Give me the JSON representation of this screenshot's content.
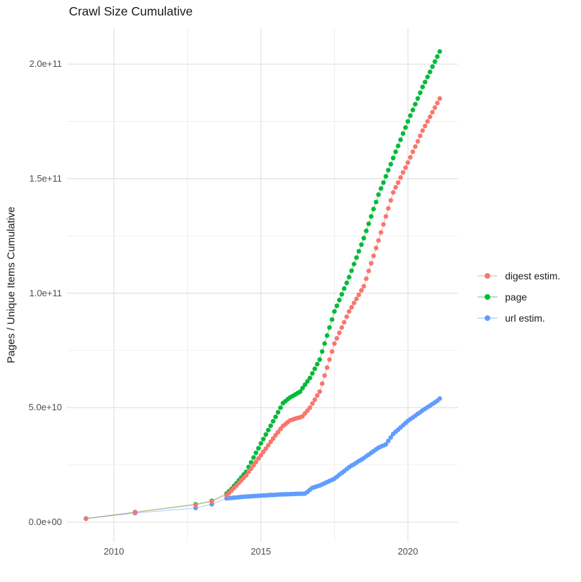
{
  "title": "Crawl Size Cumulative",
  "y_axis_title": "Pages / Unique Items Cumulative",
  "legend": {
    "items": [
      {
        "label": "digest estim.",
        "color": "#F8766D"
      },
      {
        "label": "page",
        "color": "#00BA38"
      },
      {
        "label": "url estim.",
        "color": "#619CFF"
      }
    ]
  },
  "colors": {
    "digest": "#F8766D",
    "page": "#00BA38",
    "url": "#619CFF",
    "grid_major": "#E3E3E3",
    "grid_minor": "#EDEDED",
    "tick_text": "#4d4d4d",
    "title_text": "#1a1a1a",
    "background": "#ffffff"
  },
  "chart_data": {
    "type": "scatter",
    "title": "Crawl Size Cumulative",
    "xlabel": "",
    "ylabel": "Pages / Unique Items Cumulative",
    "grid": true,
    "legend_position": "right-center",
    "x_unit": "year",
    "y_unit_note": "point values stored in billions (1e9) of pages / unique items",
    "xlim": [
      2008.4,
      2021.7
    ],
    "ylim_billions": [
      -8.6,
      215.7
    ],
    "x_ticks": {
      "major": [
        {
          "value": 2010,
          "label": "2010"
        },
        {
          "value": 2015,
          "label": "2015"
        },
        {
          "value": 2020,
          "label": "2020"
        }
      ],
      "minor": [
        2012.5,
        2017.5
      ]
    },
    "y_ticks": {
      "major": [
        {
          "value": 0,
          "label": "0.0e+00"
        },
        {
          "value": 50,
          "label": "5.0e+10"
        },
        {
          "value": 100,
          "label": "1.0e+11"
        },
        {
          "value": 150,
          "label": "1.5e+11"
        },
        {
          "value": 200,
          "label": "2.0e+11"
        }
      ],
      "minor": [
        25,
        75,
        125,
        175
      ]
    },
    "series": [
      {
        "name": "digest estim.",
        "color": "#F8766D",
        "points": [
          [
            2009.05,
            1.55
          ],
          [
            2010.72,
            4.3
          ],
          [
            2012.78,
            7.6
          ],
          [
            2013.33,
            9.0
          ],
          [
            2013.833,
            11.8
          ],
          [
            2013.917,
            12.8
          ],
          [
            2014.0,
            13.8
          ],
          [
            2014.083,
            14.9
          ],
          [
            2014.167,
            16.0
          ],
          [
            2014.25,
            17.2
          ],
          [
            2014.333,
            18.3
          ],
          [
            2014.417,
            19.4
          ],
          [
            2014.5,
            20.5
          ],
          [
            2014.583,
            22.0
          ],
          [
            2014.667,
            23.4
          ],
          [
            2014.75,
            24.9
          ],
          [
            2014.833,
            26.3
          ],
          [
            2014.917,
            27.8
          ],
          [
            2015.0,
            29.2
          ],
          [
            2015.083,
            30.7
          ],
          [
            2015.167,
            32.1
          ],
          [
            2015.25,
            33.6
          ],
          [
            2015.333,
            35.1
          ],
          [
            2015.417,
            36.5
          ],
          [
            2015.5,
            38.0
          ],
          [
            2015.583,
            39.3
          ],
          [
            2015.667,
            40.7
          ],
          [
            2015.75,
            42.0
          ],
          [
            2015.833,
            42.8
          ],
          [
            2015.917,
            43.7
          ],
          [
            2016.0,
            44.5
          ],
          [
            2016.083,
            44.8
          ],
          [
            2016.167,
            45.2
          ],
          [
            2016.25,
            45.5
          ],
          [
            2016.333,
            45.8
          ],
          [
            2016.417,
            46.2
          ],
          [
            2016.5,
            47.5
          ],
          [
            2016.583,
            48.7
          ],
          [
            2016.667,
            50.0
          ],
          [
            2016.75,
            51.8
          ],
          [
            2016.833,
            53.5
          ],
          [
            2016.917,
            55.3
          ],
          [
            2017.0,
            57.0
          ],
          [
            2017.083,
            60.5
          ],
          [
            2017.167,
            64.0
          ],
          [
            2017.25,
            67.5
          ],
          [
            2017.333,
            71.0
          ],
          [
            2017.417,
            74.5
          ],
          [
            2017.5,
            78.0
          ],
          [
            2017.583,
            80.3
          ],
          [
            2017.667,
            82.7
          ],
          [
            2017.75,
            85.0
          ],
          [
            2017.833,
            87.3
          ],
          [
            2017.917,
            89.7
          ],
          [
            2018.0,
            92.0
          ],
          [
            2018.083,
            93.8
          ],
          [
            2018.167,
            95.7
          ],
          [
            2018.25,
            97.5
          ],
          [
            2018.333,
            99.3
          ],
          [
            2018.417,
            101.2
          ],
          [
            2018.5,
            103.0
          ],
          [
            2018.583,
            106.3
          ],
          [
            2018.667,
            109.7
          ],
          [
            2018.75,
            113.0
          ],
          [
            2018.833,
            116.3
          ],
          [
            2018.917,
            119.7
          ],
          [
            2019.0,
            123.0
          ],
          [
            2019.083,
            126.5
          ],
          [
            2019.167,
            130.0
          ],
          [
            2019.25,
            133.5
          ],
          [
            2019.333,
            137.0
          ],
          [
            2019.417,
            140.5
          ],
          [
            2019.5,
            144.0
          ],
          [
            2019.583,
            146.2
          ],
          [
            2019.667,
            148.3
          ],
          [
            2019.75,
            150.5
          ],
          [
            2019.833,
            152.7
          ],
          [
            2019.917,
            154.8
          ],
          [
            2020.0,
            157.0
          ],
          [
            2020.083,
            159.3
          ],
          [
            2020.167,
            161.7
          ],
          [
            2020.25,
            164.0
          ],
          [
            2020.333,
            166.3
          ],
          [
            2020.417,
            168.7
          ],
          [
            2020.5,
            171.0
          ],
          [
            2020.583,
            173.0
          ],
          [
            2020.667,
            175.0
          ],
          [
            2020.75,
            177.0
          ],
          [
            2020.833,
            179.0
          ],
          [
            2020.917,
            181.0
          ],
          [
            2021.0,
            183.0
          ],
          [
            2021.083,
            185.0
          ]
        ]
      },
      {
        "name": "page",
        "color": "#00BA38",
        "points": [
          [
            2009.05,
            1.6
          ],
          [
            2010.72,
            4.4
          ],
          [
            2012.78,
            7.8
          ],
          [
            2013.33,
            9.3
          ],
          [
            2013.833,
            12.5
          ],
          [
            2013.917,
            13.5
          ],
          [
            2014.0,
            14.5
          ],
          [
            2014.083,
            15.8
          ],
          [
            2014.167,
            17.0
          ],
          [
            2014.25,
            18.3
          ],
          [
            2014.333,
            19.5
          ],
          [
            2014.417,
            20.8
          ],
          [
            2014.5,
            22.0
          ],
          [
            2014.583,
            24.1
          ],
          [
            2014.667,
            26.1
          ],
          [
            2014.75,
            28.2
          ],
          [
            2014.833,
            30.3
          ],
          [
            2014.917,
            32.3
          ],
          [
            2015.0,
            34.4
          ],
          [
            2015.083,
            36.3
          ],
          [
            2015.167,
            38.3
          ],
          [
            2015.25,
            40.2
          ],
          [
            2015.333,
            42.1
          ],
          [
            2015.417,
            44.1
          ],
          [
            2015.5,
            46.0
          ],
          [
            2015.583,
            48.0
          ],
          [
            2015.667,
            50.0
          ],
          [
            2015.75,
            52.0
          ],
          [
            2015.833,
            52.8
          ],
          [
            2015.917,
            53.7
          ],
          [
            2016.0,
            54.5
          ],
          [
            2016.083,
            55.1
          ],
          [
            2016.167,
            55.7
          ],
          [
            2016.25,
            56.4
          ],
          [
            2016.333,
            57.0
          ],
          [
            2016.417,
            58.5
          ],
          [
            2016.5,
            60.0
          ],
          [
            2016.583,
            61.5
          ],
          [
            2016.667,
            63.0
          ],
          [
            2016.75,
            65.0
          ],
          [
            2016.833,
            67.0
          ],
          [
            2016.917,
            69.0
          ],
          [
            2017.0,
            71.0
          ],
          [
            2017.083,
            74.5
          ],
          [
            2017.167,
            78.0
          ],
          [
            2017.25,
            81.5
          ],
          [
            2017.333,
            85.0
          ],
          [
            2017.417,
            88.5
          ],
          [
            2017.5,
            92.0
          ],
          [
            2017.583,
            94.5
          ],
          [
            2017.667,
            97.0
          ],
          [
            2017.75,
            99.5
          ],
          [
            2017.833,
            102.0
          ],
          [
            2017.917,
            104.5
          ],
          [
            2018.0,
            107.0
          ],
          [
            2018.083,
            109.8
          ],
          [
            2018.167,
            112.7
          ],
          [
            2018.25,
            115.5
          ],
          [
            2018.333,
            118.3
          ],
          [
            2018.417,
            121.2
          ],
          [
            2018.5,
            124.0
          ],
          [
            2018.583,
            127.2
          ],
          [
            2018.667,
            130.3
          ],
          [
            2018.75,
            133.5
          ],
          [
            2018.833,
            136.7
          ],
          [
            2018.917,
            139.8
          ],
          [
            2019.0,
            143.0
          ],
          [
            2019.083,
            145.7
          ],
          [
            2019.167,
            148.3
          ],
          [
            2019.25,
            151.0
          ],
          [
            2019.333,
            153.7
          ],
          [
            2019.417,
            156.3
          ],
          [
            2019.5,
            159.0
          ],
          [
            2019.583,
            161.7
          ],
          [
            2019.667,
            164.3
          ],
          [
            2019.75,
            167.0
          ],
          [
            2019.833,
            169.7
          ],
          [
            2019.917,
            172.3
          ],
          [
            2020.0,
            175.0
          ],
          [
            2020.083,
            177.5
          ],
          [
            2020.167,
            180.0
          ],
          [
            2020.25,
            182.5
          ],
          [
            2020.333,
            185.0
          ],
          [
            2020.417,
            187.5
          ],
          [
            2020.5,
            190.0
          ],
          [
            2020.583,
            192.2
          ],
          [
            2020.667,
            194.4
          ],
          [
            2020.75,
            196.6
          ],
          [
            2020.833,
            198.9
          ],
          [
            2020.917,
            201.1
          ],
          [
            2021.0,
            203.3
          ],
          [
            2021.083,
            205.5
          ]
        ]
      },
      {
        "name": "url estim.",
        "color": "#619CFF",
        "points": [
          [
            2009.05,
            1.5
          ],
          [
            2010.72,
            4.0
          ],
          [
            2012.78,
            6.2
          ],
          [
            2013.33,
            7.8
          ],
          [
            2013.833,
            10.4
          ],
          [
            2013.917,
            10.5
          ],
          [
            2014.0,
            10.6
          ],
          [
            2014.083,
            10.7
          ],
          [
            2014.167,
            10.8
          ],
          [
            2014.25,
            10.9
          ],
          [
            2014.333,
            11.0
          ],
          [
            2014.417,
            11.1
          ],
          [
            2014.5,
            11.2
          ],
          [
            2014.583,
            11.25
          ],
          [
            2014.667,
            11.3
          ],
          [
            2014.75,
            11.4
          ],
          [
            2014.833,
            11.45
          ],
          [
            2014.917,
            11.5
          ],
          [
            2015.0,
            11.6
          ],
          [
            2015.083,
            11.7
          ],
          [
            2015.167,
            11.7
          ],
          [
            2015.25,
            11.8
          ],
          [
            2015.333,
            11.9
          ],
          [
            2015.417,
            11.9
          ],
          [
            2015.5,
            12.0
          ],
          [
            2015.583,
            12.05
          ],
          [
            2015.667,
            12.1
          ],
          [
            2015.75,
            12.15
          ],
          [
            2015.833,
            12.2
          ],
          [
            2015.917,
            12.2
          ],
          [
            2016.0,
            12.25
          ],
          [
            2016.083,
            12.3
          ],
          [
            2016.167,
            12.35
          ],
          [
            2016.25,
            12.4
          ],
          [
            2016.333,
            12.4
          ],
          [
            2016.417,
            12.45
          ],
          [
            2016.5,
            12.5
          ],
          [
            2016.583,
            13.2
          ],
          [
            2016.667,
            14.2
          ],
          [
            2016.75,
            15.0
          ],
          [
            2016.833,
            15.3
          ],
          [
            2016.917,
            15.7
          ],
          [
            2017.0,
            16.0
          ],
          [
            2017.083,
            16.5
          ],
          [
            2017.167,
            17.0
          ],
          [
            2017.25,
            17.5
          ],
          [
            2017.333,
            18.0
          ],
          [
            2017.417,
            18.5
          ],
          [
            2017.5,
            19.0
          ],
          [
            2017.583,
            19.8
          ],
          [
            2017.667,
            20.7
          ],
          [
            2017.75,
            21.5
          ],
          [
            2017.833,
            22.3
          ],
          [
            2017.917,
            23.2
          ],
          [
            2018.0,
            24.0
          ],
          [
            2018.083,
            24.7
          ],
          [
            2018.167,
            25.3
          ],
          [
            2018.25,
            26.0
          ],
          [
            2018.333,
            26.7
          ],
          [
            2018.417,
            27.3
          ],
          [
            2018.5,
            28.0
          ],
          [
            2018.583,
            28.8
          ],
          [
            2018.667,
            29.5
          ],
          [
            2018.75,
            30.3
          ],
          [
            2018.833,
            31.0
          ],
          [
            2018.917,
            31.8
          ],
          [
            2019.0,
            32.5
          ],
          [
            2019.083,
            33.0
          ],
          [
            2019.167,
            33.5
          ],
          [
            2019.25,
            34.0
          ],
          [
            2019.333,
            35.5
          ],
          [
            2019.417,
            37.0
          ],
          [
            2019.5,
            38.5
          ],
          [
            2019.583,
            39.5
          ],
          [
            2019.667,
            40.4
          ],
          [
            2019.75,
            41.4
          ],
          [
            2019.833,
            42.3
          ],
          [
            2019.917,
            43.3
          ],
          [
            2020.0,
            44.2
          ],
          [
            2020.083,
            45.0
          ],
          [
            2020.167,
            45.7
          ],
          [
            2020.25,
            46.5
          ],
          [
            2020.333,
            47.3
          ],
          [
            2020.417,
            48.0
          ],
          [
            2020.5,
            48.8
          ],
          [
            2020.583,
            49.5
          ],
          [
            2020.667,
            50.2
          ],
          [
            2020.75,
            50.9
          ],
          [
            2020.833,
            51.6
          ],
          [
            2020.917,
            52.3
          ],
          [
            2021.0,
            53.0
          ],
          [
            2021.083,
            54.0
          ]
        ]
      }
    ]
  }
}
